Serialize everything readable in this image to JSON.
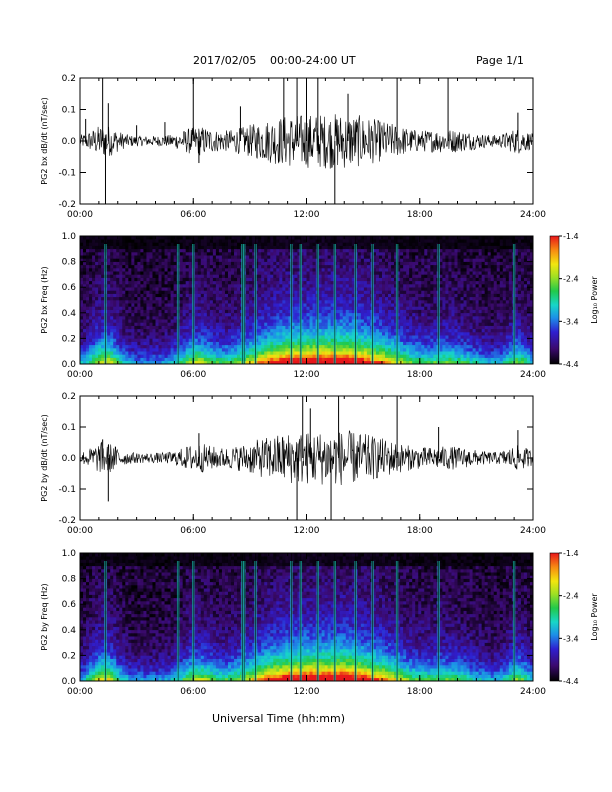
{
  "header": {
    "date": "2017/02/05",
    "time_range": "00:00-24:00 UT",
    "page": "Page 1/1"
  },
  "footer": {
    "xlabel": "Universal Time (hh:mm)"
  },
  "colorbar": {
    "label": "Log₁₀ Power",
    "ticks": [
      "-1.4",
      "-2.4",
      "-3.4",
      "-4.4"
    ],
    "colors": [
      "#000000",
      "#3b0a6e",
      "#2f1fd0",
      "#1d8fe8",
      "#17d6c8",
      "#22c94a",
      "#9fe023",
      "#f2e60f",
      "#f78a12",
      "#e8161b"
    ]
  },
  "chart_data": [
    {
      "type": "line",
      "ylabel": "PG2 bx dB/dt (nT/sec)",
      "xlim": [
        "00:00",
        "24:00"
      ],
      "ylim": [
        -0.2,
        0.2
      ],
      "xticks": [
        "00:00",
        "06:00",
        "12:00",
        "18:00",
        "24:00"
      ],
      "yticks": [
        "-0.2",
        "-0.1",
        "0.0",
        "0.1",
        "0.2"
      ],
      "series": [
        {
          "x_hours": [
            0.3,
            1.2,
            1.35,
            1.5,
            3.0,
            4.5,
            6.0,
            6.3,
            8.5,
            10.8,
            11.5,
            12.0,
            12.6,
            13.5,
            14.2,
            16.8,
            19.5,
            23.2
          ],
          "y": [
            0.07,
            0.2,
            -0.2,
            0.12,
            0.05,
            0.06,
            0.2,
            -0.07,
            0.11,
            0.2,
            0.2,
            0.2,
            0.2,
            -0.2,
            0.15,
            0.2,
            0.2,
            0.09
          ]
        }
      ]
    },
    {
      "type": "heatmap",
      "ylabel": "PG2 bx Freq (Hz)",
      "xlim": [
        "00:00",
        "24:00"
      ],
      "ylim": [
        0.0,
        1.0
      ],
      "xticks": [
        "00:00",
        "06:00",
        "12:00",
        "18:00",
        "24:00"
      ],
      "yticks": [
        "0.0",
        "0.2",
        "0.4",
        "0.6",
        "0.8",
        "1.0"
      ],
      "colorbar_range": [
        -4.4,
        -1.4
      ],
      "bright_columns_hours": [
        1.35,
        5.2,
        6.0,
        8.6,
        8.7,
        9.3,
        11.2,
        11.7,
        12.6,
        13.5,
        14.6,
        15.5,
        16.8,
        19.0,
        23.0
      ]
    },
    {
      "type": "line",
      "ylabel": "PG2 by dB/dt (nT/sec)",
      "xlim": [
        "00:00",
        "24:00"
      ],
      "ylim": [
        -0.2,
        0.2
      ],
      "xticks": [
        "00:00",
        "06:00",
        "12:00",
        "18:00",
        "24:00"
      ],
      "yticks": [
        "-0.2",
        "-0.1",
        "0.0",
        "0.1",
        "0.2"
      ],
      "series": [
        {
          "x_hours": [
            1.2,
            1.5,
            6.3,
            11.5,
            11.8,
            12.2,
            13.3,
            13.7,
            16.8,
            19.0,
            23.2
          ],
          "y": [
            0.06,
            -0.14,
            0.08,
            -0.2,
            0.2,
            0.16,
            -0.2,
            0.2,
            0.2,
            0.1,
            0.09
          ]
        }
      ]
    },
    {
      "type": "heatmap",
      "ylabel": "PG2 by Freq (Hz)",
      "xlim": [
        "00:00",
        "24:00"
      ],
      "ylim": [
        0.0,
        1.0
      ],
      "xticks": [
        "00:00",
        "06:00",
        "12:00",
        "18:00",
        "24:00"
      ],
      "yticks": [
        "0.0",
        "0.2",
        "0.4",
        "0.6",
        "0.8",
        "1.0"
      ],
      "colorbar_range": [
        -4.4,
        -1.4
      ],
      "bright_columns_hours": [
        1.35,
        5.2,
        6.0,
        8.6,
        8.7,
        9.3,
        11.2,
        11.7,
        12.6,
        13.5,
        14.6,
        15.5,
        16.8,
        19.0,
        23.0
      ]
    }
  ]
}
